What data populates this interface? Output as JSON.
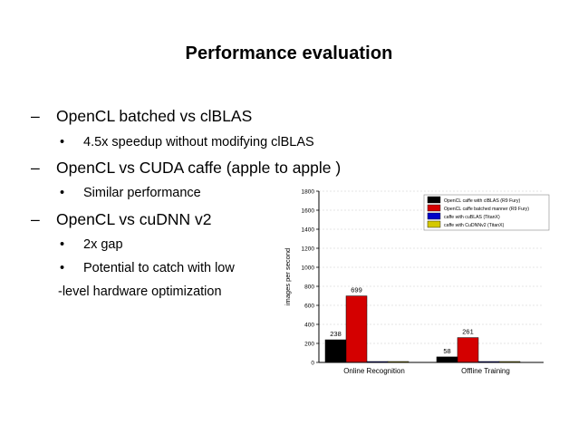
{
  "slide": {
    "title": "Performance evaluation",
    "bullets": [
      {
        "text": "OpenCL batched vs clBLAS",
        "sub": [
          "4.5x speedup without modifying clBLAS"
        ]
      },
      {
        "text": "OpenCL vs CUDA caffe (apple to apple )",
        "sub": [
          "Similar performance"
        ]
      },
      {
        "text": "OpenCL vs cuDNN v2",
        "sub": [
          "2x gap",
          "Potential to catch with low"
        ]
      }
    ],
    "continuation": "-level hardware optimization",
    "dash_glyph": "–",
    "dot_glyph": "•"
  },
  "chart_data": {
    "type": "bar",
    "categories": [
      "Online Recognition",
      "Offline Training"
    ],
    "series": [
      {
        "name": "OpenCL caffe with clBLAS (R9 Fury)",
        "color": "#000000",
        "values": [
          238,
          58
        ]
      },
      {
        "name": "OpenCL caffe batched manner (R9 Fury)",
        "color": "#d40000",
        "values": [
          699,
          261
        ]
      },
      {
        "name": "caffe with cuBLAS (TitanX)",
        "color": "#0000c8",
        "values": [
          0,
          0
        ]
      },
      {
        "name": "caffe with CuDNNv2 (TitanX)",
        "color": "#d4c800",
        "values": [
          0,
          0
        ]
      }
    ],
    "data_labels": [
      [
        "238",
        "58"
      ],
      [
        "699",
        "261"
      ]
    ],
    "ylabel": "images per second",
    "xlabel": "",
    "title": "",
    "ylim": [
      0,
      1800
    ],
    "yticks": [
      0,
      200,
      400,
      600,
      800,
      1000,
      1200,
      1400,
      1600,
      1800
    ],
    "grid": true,
    "legend_position": "top-right"
  }
}
